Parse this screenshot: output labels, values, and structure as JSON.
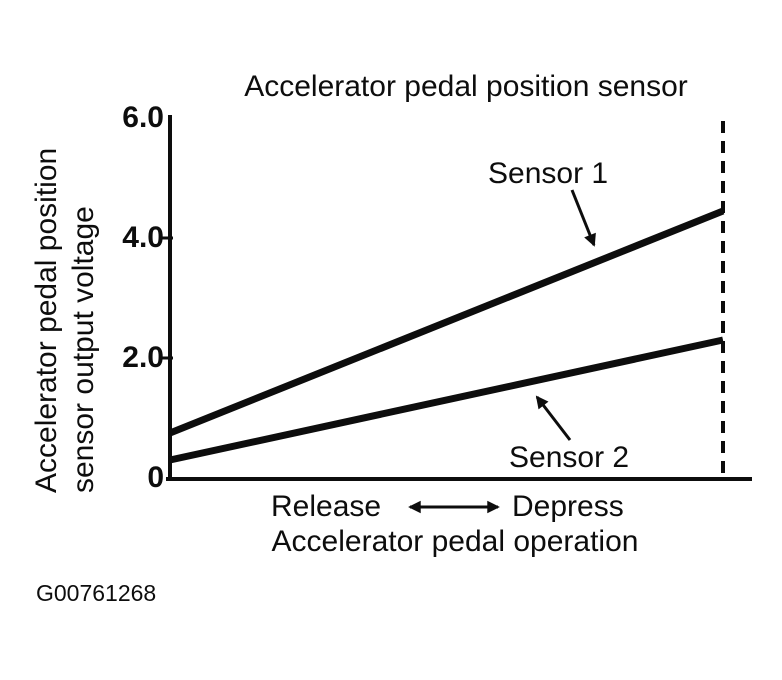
{
  "colors": {
    "ink": "#0d0d0d",
    "background": "#ffffff"
  },
  "figure_id": "G00761268",
  "chart_data": {
    "type": "line",
    "title": "Accelerator pedal position sensor",
    "ylabel": [
      "Accelerator pedal position",
      "sensor output voltage"
    ],
    "xlabel": "Accelerator pedal operation",
    "pedal_operation": {
      "left_label": "Release",
      "right_label": "Depress"
    },
    "y_ticks": [
      "6.0",
      "4.0",
      "2.0",
      "0"
    ],
    "ylim": [
      0,
      6.0
    ],
    "x_endpoints": [
      "Release",
      "Depress (full)"
    ],
    "series": [
      {
        "name": "Sensor 1",
        "values": [
          0.75,
          4.45
        ]
      },
      {
        "name": "Sensor 2",
        "values": [
          0.3,
          2.3
        ]
      }
    ],
    "dashed_line_at": "Depress (full)",
    "grid": false
  }
}
